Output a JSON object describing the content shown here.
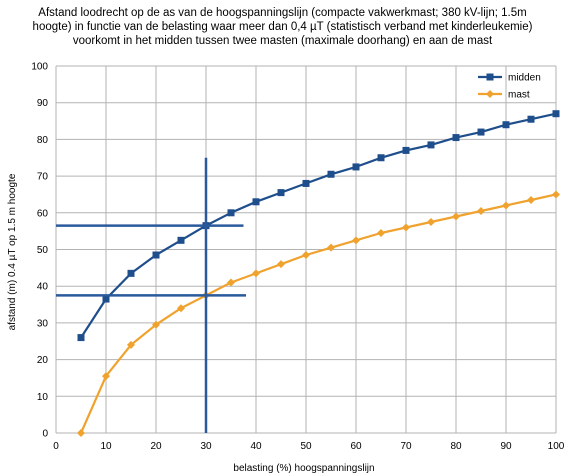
{
  "chart_data": {
    "type": "line",
    "title_lines": [
      "Afstand loodrecht op de as van de hoogspanningslijn (compacte vakwerkmast; 380 kV-lijn; 1.5m",
      "hoogte) in functie van de belasting waar meer dan 0,4 µT (statistisch verband met kinderleukemie)",
      "voorkomt in het midden tussen twee masten (maximale doorhang) en aan de mast"
    ],
    "xlabel": "belasting (%) hoogspanningslijn",
    "ylabel": "afstand (m) 0.4 µT op 1.5 m hoogte",
    "xlim": [
      0,
      100
    ],
    "ylim": [
      0,
      100
    ],
    "xticks": [
      0,
      10,
      20,
      30,
      40,
      50,
      60,
      70,
      80,
      90,
      100
    ],
    "yticks": [
      0,
      10,
      20,
      30,
      40,
      50,
      60,
      70,
      80,
      90,
      100
    ],
    "grid": true,
    "legend_position": "top-right",
    "series": [
      {
        "name": "midden",
        "color": "#1f4e8c",
        "marker": "square",
        "x": [
          5,
          10,
          15,
          20,
          25,
          30,
          35,
          40,
          45,
          50,
          55,
          60,
          65,
          70,
          75,
          80,
          85,
          90,
          95,
          100
        ],
        "y": [
          26,
          36.5,
          43.5,
          48.5,
          52.5,
          56.5,
          60,
          63,
          65.5,
          68,
          70.5,
          72.5,
          75,
          77,
          78.5,
          80.5,
          82,
          84,
          85.5,
          87
        ]
      },
      {
        "name": "mast",
        "color": "#f0a22e",
        "marker": "diamond",
        "x": [
          5,
          10,
          15,
          20,
          25,
          30,
          35,
          40,
          45,
          50,
          55,
          60,
          65,
          70,
          75,
          80,
          85,
          90,
          95,
          100
        ],
        "y": [
          0,
          15.5,
          24,
          29.5,
          34,
          37.5,
          41,
          43.5,
          46,
          48.5,
          50.5,
          52.5,
          54.5,
          56,
          57.5,
          59,
          60.5,
          62,
          63.5,
          65
        ]
      }
    ],
    "annotations": {
      "color": "#2a5a9c",
      "vertical": {
        "x": 30,
        "y_from": 0,
        "y_to": 75
      },
      "horizontal": [
        {
          "y": 56.5,
          "x_from": 0,
          "x_to": 37.5
        },
        {
          "y": 37.5,
          "x_from": 0,
          "x_to": 38
        }
      ]
    }
  }
}
